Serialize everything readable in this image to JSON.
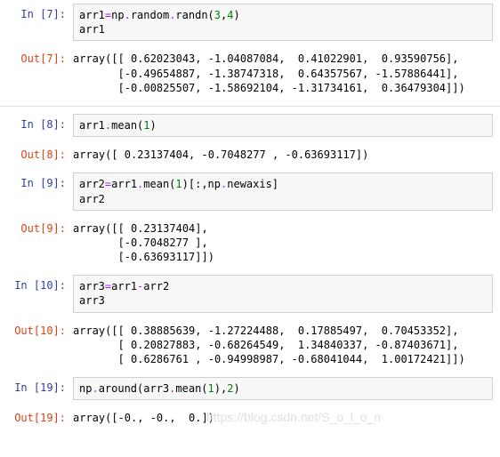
{
  "cells": [
    {
      "n": 7,
      "input_html": "arr1<span class='tok-op'>=</span>np<span class='tok-op'>.</span>random<span class='tok-op'>.</span>randn(<span class='tok-num'>3</span>,<span class='tok-num'>4</span>)\narr1",
      "output": "array([[ 0.62023043, -1.04087084,  0.41022901,  0.93590756],\n       [-0.49654887, -1.38747318,  0.64357567, -1.57886441],\n       [-0.00825507, -1.58692104, -1.31734161,  0.36479304]])",
      "sep_after": true
    },
    {
      "n": 8,
      "input_html": "arr1<span class='tok-op'>.</span>mean(<span class='tok-num'>1</span>)",
      "output": "array([ 0.23137404, -0.7048277 , -0.63693117])",
      "sep_after": false
    },
    {
      "n": 9,
      "input_html": "arr2<span class='tok-op'>=</span>arr1<span class='tok-op'>.</span>mean(<span class='tok-num'>1</span>)[:,np<span class='tok-op'>.</span>newaxis]\narr2",
      "output": "array([[ 0.23137404],\n       [-0.7048277 ],\n       [-0.63693117]])",
      "sep_after": false
    },
    {
      "n": 10,
      "input_html": "arr3<span class='tok-op'>=</span>arr1<span class='tok-op'>-</span>arr2\narr3",
      "output": "array([[ 0.38885639, -1.27224488,  0.17885497,  0.70453352],\n       [ 0.20827883, -0.68264549,  1.34840337, -0.87403671],\n       [ 0.6286761 , -0.94998987, -0.68041044,  1.00172421]])",
      "sep_after": false
    },
    {
      "n": 19,
      "input_html": "np<span class='tok-op'>.</span>around(arr3<span class='tok-op'>.</span>mean(<span class='tok-num'>1</span>),<span class='tok-num'>2</span>)",
      "output": "array([-0., -0.,  0.])",
      "sep_after": false,
      "watermark": true
    }
  ],
  "watermark_text": "https://blog.csdn.net/S_o_l_o_n",
  "colors": {
    "prompt_in": "#303f9f",
    "prompt_out": "#d84315",
    "input_bg": "#f7f7f7",
    "input_border": "#cfcfcf",
    "num": "#008000",
    "op": "#aa22ff",
    "watermark": "#e0e0e0",
    "sep": "#e0e0e0"
  }
}
